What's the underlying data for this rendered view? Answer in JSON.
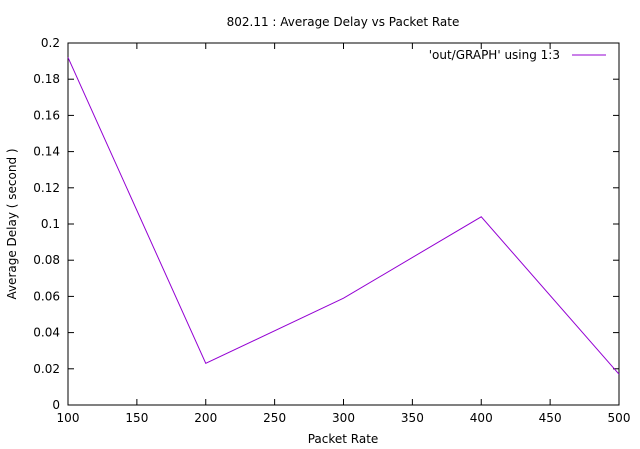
{
  "chart_data": {
    "type": "line",
    "title": "802.11 : Average Delay vs Packet Rate",
    "xlabel": "Packet Rate",
    "ylabel": "Average Delay ( second )",
    "xlim": [
      100,
      500
    ],
    "ylim": [
      0,
      0.2
    ],
    "xticks": [
      "100",
      "150",
      "200",
      "250",
      "300",
      "350",
      "400",
      "450",
      "500"
    ],
    "yticks": [
      "0",
      "0.02",
      "0.04",
      "0.06",
      "0.08",
      "0.1",
      "0.12",
      "0.14",
      "0.16",
      "0.18",
      "0.2"
    ],
    "grid": false,
    "legend_position": "top-right",
    "series": [
      {
        "name": "'out/GRAPH' using 1:3",
        "color": "#9400d3",
        "x": [
          100,
          200,
          300,
          400,
          500
        ],
        "y": [
          0.192,
          0.023,
          0.059,
          0.104,
          0.017
        ]
      }
    ]
  }
}
